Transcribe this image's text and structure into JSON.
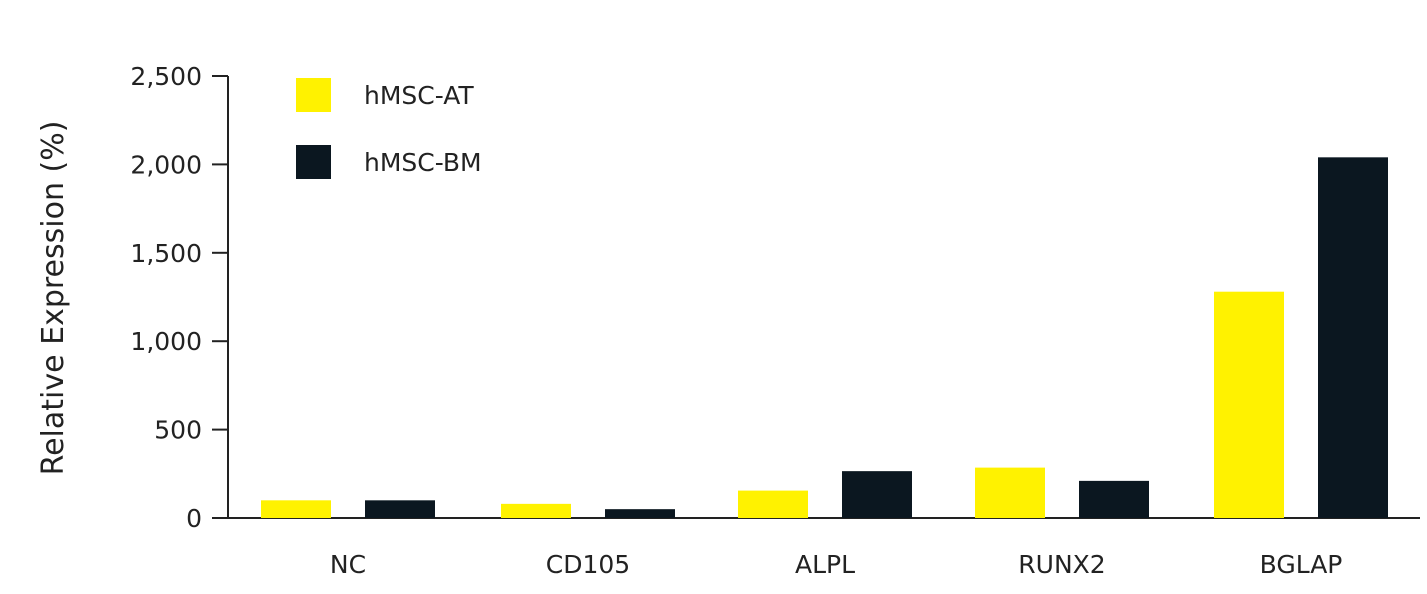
{
  "chart_data": {
    "type": "bar",
    "title": "",
    "xlabel": "",
    "ylabel": "Relative Expression (%)",
    "categories": [
      "NC",
      "CD105",
      "ALPL",
      "RUNX2",
      "BGLAP"
    ],
    "series": [
      {
        "name": "hMSC-AT",
        "color": "#FFF200",
        "values": [
          100,
          80,
          155,
          285,
          1280
        ]
      },
      {
        "name": "hMSC-BM",
        "color": "#0B1720",
        "values": [
          100,
          50,
          265,
          210,
          2040
        ]
      }
    ],
    "ylim": [
      0,
      2500
    ],
    "yticks": [
      0,
      500,
      1000,
      1500,
      2000,
      2500
    ],
    "ytick_labels": [
      "0",
      "500",
      "1,000",
      "1,500",
      "2,000",
      "2,500"
    ],
    "grid": false,
    "legend_position": "top-left"
  }
}
